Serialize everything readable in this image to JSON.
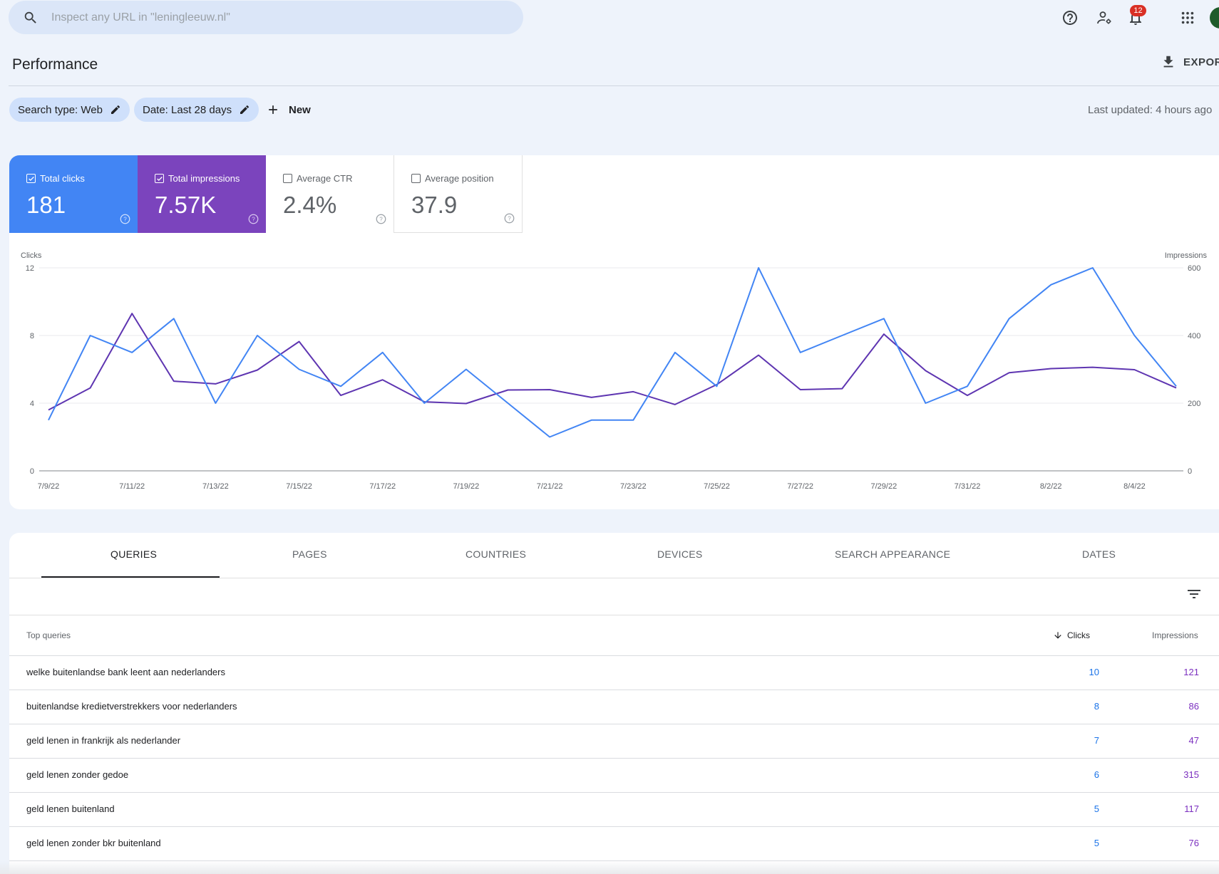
{
  "search": {
    "placeholder": "Inspect any URL in \"leningleeuw.nl\""
  },
  "header": {
    "notification_count": "12"
  },
  "page": {
    "title": "Performance",
    "export_label": "EXPORT"
  },
  "filters": {
    "search_type": "Search type: Web",
    "date": "Date: Last 28 days",
    "new_label": "New",
    "last_updated": "Last updated: 4 hours ago"
  },
  "metrics": [
    {
      "label": "Total clicks",
      "value": "181",
      "checked": true,
      "color": "#4285f4"
    },
    {
      "label": "Total impressions",
      "value": "7.57K",
      "checked": true,
      "color": "#7b44bd"
    },
    {
      "label": "Average CTR",
      "value": "2.4%",
      "checked": false
    },
    {
      "label": "Average position",
      "value": "37.9",
      "checked": false
    }
  ],
  "chart_data": {
    "type": "line",
    "ylabel_left": "Clicks",
    "ylabel_right": "Impressions",
    "ylim_left": [
      0,
      12
    ],
    "ylim_right": [
      0,
      600
    ],
    "yticks_left": [
      "0",
      "4",
      "8",
      "12"
    ],
    "yticks_right": [
      "0",
      "200",
      "400",
      "600"
    ],
    "x_tick_labels": [
      "7/9/22",
      "7/11/22",
      "7/13/22",
      "7/15/22",
      "7/17/22",
      "7/19/22",
      "7/21/22",
      "7/23/22",
      "7/25/22",
      "7/27/22",
      "7/29/22",
      "7/31/22",
      "8/2/22",
      "8/4/22"
    ],
    "x": [
      "7/9/22",
      "7/10/22",
      "7/11/22",
      "7/12/22",
      "7/13/22",
      "7/14/22",
      "7/15/22",
      "7/16/22",
      "7/17/22",
      "7/18/22",
      "7/19/22",
      "7/20/22",
      "7/21/22",
      "7/22/22",
      "7/23/22",
      "7/24/22",
      "7/25/22",
      "7/26/22",
      "7/27/22",
      "7/28/22",
      "7/29/22",
      "7/30/22",
      "7/31/22",
      "8/1/22",
      "8/2/22",
      "8/3/22",
      "8/4/22",
      "8/5/22"
    ],
    "grid": true,
    "series": [
      {
        "name": "Clicks",
        "axis": "left",
        "color": "#4285f4",
        "values": [
          3,
          8,
          7,
          9,
          4,
          8,
          6,
          5,
          7,
          4,
          6,
          4,
          2,
          3,
          3,
          7,
          5,
          12,
          7,
          8,
          9,
          4,
          5,
          9,
          11,
          12,
          8,
          5
        ]
      },
      {
        "name": "Impressions",
        "axis": "right",
        "color": "#5e35b1",
        "values": [
          180,
          245,
          465,
          265,
          257,
          298,
          382,
          223,
          269,
          204,
          199,
          239,
          240,
          217,
          234,
          196,
          255,
          342,
          240,
          243,
          404,
          296,
          223,
          290,
          302,
          306,
          299,
          245
        ]
      }
    ]
  },
  "tabs": [
    "QUERIES",
    "PAGES",
    "COUNTRIES",
    "DEVICES",
    "SEARCH APPEARANCE",
    "DATES"
  ],
  "table": {
    "header_query": "Top queries",
    "header_clicks": "Clicks",
    "header_impressions": "Impressions",
    "rows": [
      {
        "query": "welke buitenlandse bank leent aan nederlanders",
        "clicks": "10",
        "impressions": "121"
      },
      {
        "query": "buitenlandse kredietverstrekkers voor nederlanders",
        "clicks": "8",
        "impressions": "86"
      },
      {
        "query": "geld lenen in frankrijk als nederlander",
        "clicks": "7",
        "impressions": "47"
      },
      {
        "query": "geld lenen zonder gedoe",
        "clicks": "6",
        "impressions": "315"
      },
      {
        "query": "geld lenen buitenland",
        "clicks": "5",
        "impressions": "117"
      },
      {
        "query": "geld lenen zonder bkr buitenland",
        "clicks": "5",
        "impressions": "76"
      }
    ]
  }
}
